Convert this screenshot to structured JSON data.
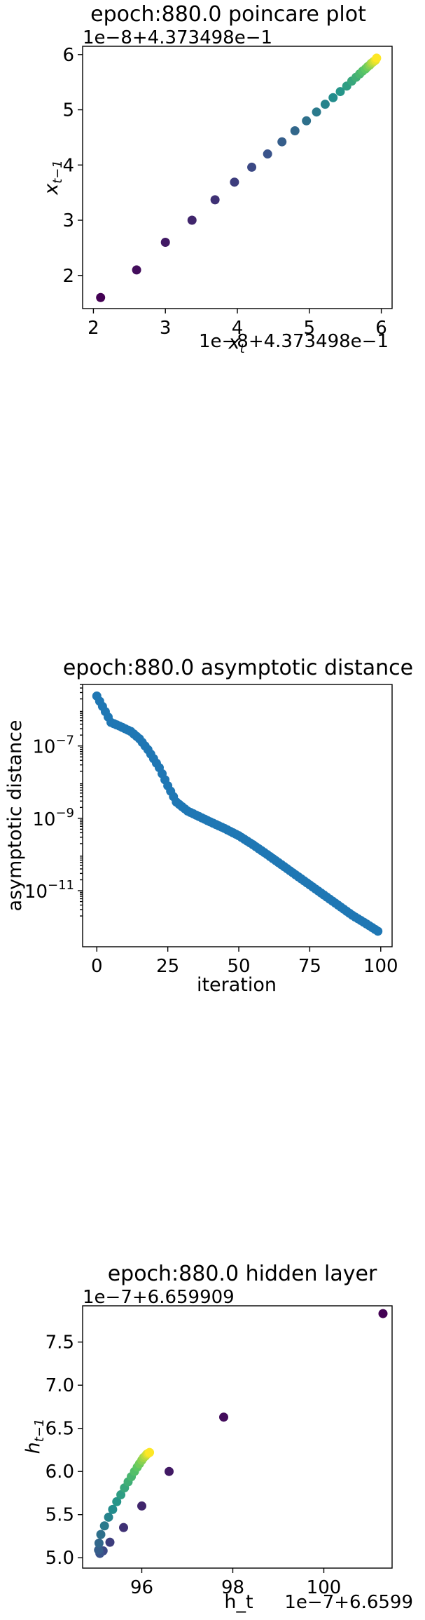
{
  "chart_data": [
    {
      "type": "scatter",
      "title": "epoch:880.0 poincare plot",
      "xlabel": "x_t",
      "ylabel": "x_{t−1}",
      "x_offset_label": "1e−8+4.373498e−1",
      "y_offset_label": "1e−8+4.373498e−1",
      "xlim": [
        1.85,
        6.15
      ],
      "ylim": [
        1.4,
        6.15
      ],
      "xticks": [
        2,
        3,
        4,
        5,
        6
      ],
      "xtick_labels": [
        "2",
        "3",
        "4",
        "5",
        "6"
      ],
      "yticks": [
        2,
        3,
        4,
        5,
        6
      ],
      "ytick_labels": [
        "2",
        "3",
        "4",
        "5",
        "6"
      ],
      "colormap": [
        "#440154",
        "#3b528b",
        "#21918c",
        "#5ec962",
        "#fde725"
      ],
      "x": [
        2.1,
        2.6,
        3.0,
        3.37,
        3.69,
        3.96,
        4.2,
        4.42,
        4.62,
        4.8,
        4.96,
        5.1,
        5.22,
        5.33,
        5.43,
        5.52,
        5.59,
        5.65,
        5.7,
        5.74,
        5.78,
        5.81,
        5.84,
        5.86,
        5.88,
        5.9,
        5.92,
        5.935
      ],
      "y": [
        1.6,
        2.1,
        2.6,
        3.0,
        3.37,
        3.69,
        3.96,
        4.2,
        4.42,
        4.62,
        4.8,
        4.96,
        5.1,
        5.22,
        5.33,
        5.43,
        5.52,
        5.59,
        5.65,
        5.7,
        5.74,
        5.78,
        5.81,
        5.84,
        5.86,
        5.88,
        5.9,
        5.935
      ]
    },
    {
      "type": "scatter",
      "title": "epoch:880.0 asymptotic distance",
      "xlabel": "iteration",
      "ylabel": "asymptotic distance",
      "xlim": [
        -5,
        104
      ],
      "ylim_log10": [
        -12.55,
        -5.3
      ],
      "yscale": "log",
      "xticks": [
        0,
        25,
        50,
        75,
        100
      ],
      "xtick_labels": [
        "0",
        "25",
        "50",
        "75",
        "100"
      ],
      "yticks_log10": [
        -7,
        -9,
        -11
      ],
      "ytick_base": "10",
      "ytick_exponents": [
        "−7",
        "−9",
        "−11"
      ],
      "color": "#1f77b4",
      "iterations": "0-99",
      "anchors_log10": [
        [
          0,
          -5.62
        ],
        [
          3,
          -6.05
        ],
        [
          5,
          -6.35
        ],
        [
          8,
          -6.45
        ],
        [
          12,
          -6.6
        ],
        [
          15,
          -6.8
        ],
        [
          18,
          -7.1
        ],
        [
          22,
          -7.6
        ],
        [
          25,
          -8.1
        ],
        [
          28,
          -8.55
        ],
        [
          32,
          -8.8
        ],
        [
          36,
          -8.95
        ],
        [
          40,
          -9.1
        ],
        [
          45,
          -9.28
        ],
        [
          50,
          -9.48
        ],
        [
          55,
          -9.73
        ],
        [
          60,
          -10.0
        ],
        [
          65,
          -10.28
        ],
        [
          70,
          -10.56
        ],
        [
          75,
          -10.84
        ],
        [
          80,
          -11.12
        ],
        [
          85,
          -11.4
        ],
        [
          90,
          -11.68
        ],
        [
          95,
          -11.92
        ],
        [
          99,
          -12.12
        ]
      ]
    },
    {
      "type": "scatter",
      "title": "epoch:880.0 hidden layer",
      "xlabel": "h_t",
      "ylabel": "h_{t−1}",
      "x_offset_label": "1e−7+6.6599",
      "y_offset_label": "1e−7+6.659909",
      "xlim": [
        94.7,
        101.5
      ],
      "ylim": [
        4.88,
        7.92
      ],
      "xticks": [
        96,
        98,
        100
      ],
      "xtick_labels": [
        "96",
        "98",
        "100"
      ],
      "yticks": [
        5.0,
        5.5,
        6.0,
        6.5,
        7.0,
        7.5
      ],
      "ytick_labels": [
        "5.0",
        "5.5",
        "6.0",
        "6.5",
        "7.0",
        "7.5"
      ],
      "colormap": [
        "#440154",
        "#3b528b",
        "#21918c",
        "#5ec962",
        "#fde725"
      ],
      "x": [
        101.3,
        97.8,
        96.6,
        96.0,
        95.6,
        95.3,
        95.15,
        95.08,
        95.05,
        95.06,
        95.1,
        95.18,
        95.27,
        95.36,
        95.45,
        95.54,
        95.62,
        95.7,
        95.77,
        95.84,
        95.9,
        95.95,
        96.0,
        96.04,
        96.08,
        96.11,
        96.14,
        96.17
      ],
      "y": [
        7.83,
        6.63,
        6.0,
        5.6,
        5.35,
        5.18,
        5.08,
        5.05,
        5.09,
        5.17,
        5.27,
        5.37,
        5.47,
        5.56,
        5.65,
        5.73,
        5.81,
        5.88,
        5.94,
        6.0,
        6.05,
        6.09,
        6.13,
        6.16,
        6.18,
        6.2,
        6.21,
        6.22
      ]
    }
  ]
}
